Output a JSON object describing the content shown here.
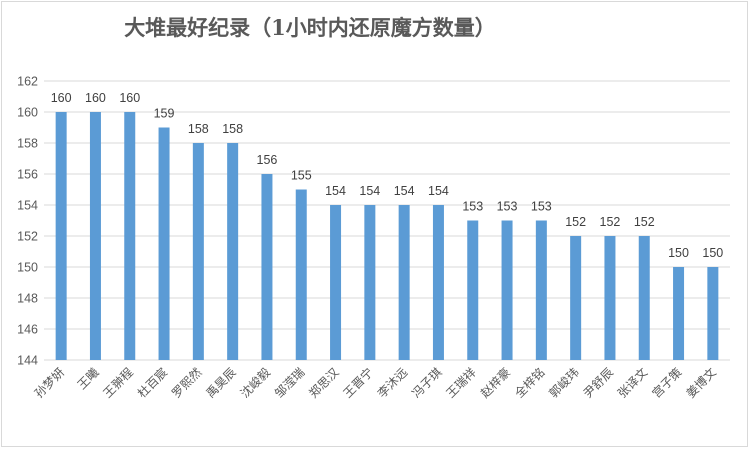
{
  "chart_data": {
    "type": "bar",
    "title": "大堆最好纪录（1小时内还原魔方数量）",
    "categories": [
      "孙梦妍",
      "王曦",
      "王翀程",
      "杜百宸",
      "罗熙然",
      "禹昊辰",
      "沈峻毅",
      "邹滢瑞",
      "郑思汉",
      "王晋宁",
      "李沐远",
      "冯子琪",
      "王瑞祥",
      "赵梓豪",
      "全梓铭",
      "郭峻玮",
      "尹舒辰",
      "张译文",
      "宫子策",
      "姜博文"
    ],
    "values": [
      160,
      160,
      160,
      159,
      158,
      158,
      156,
      155,
      154,
      154,
      154,
      154,
      153,
      153,
      153,
      152,
      152,
      152,
      150,
      150
    ],
    "ylim": [
      144,
      162
    ],
    "yticks": [
      144,
      146,
      148,
      150,
      152,
      154,
      156,
      158,
      160,
      162
    ],
    "grid": true,
    "bar_color": "#5b9bd5",
    "axis_color": "#d9d9d9",
    "text_color": "#595959"
  }
}
